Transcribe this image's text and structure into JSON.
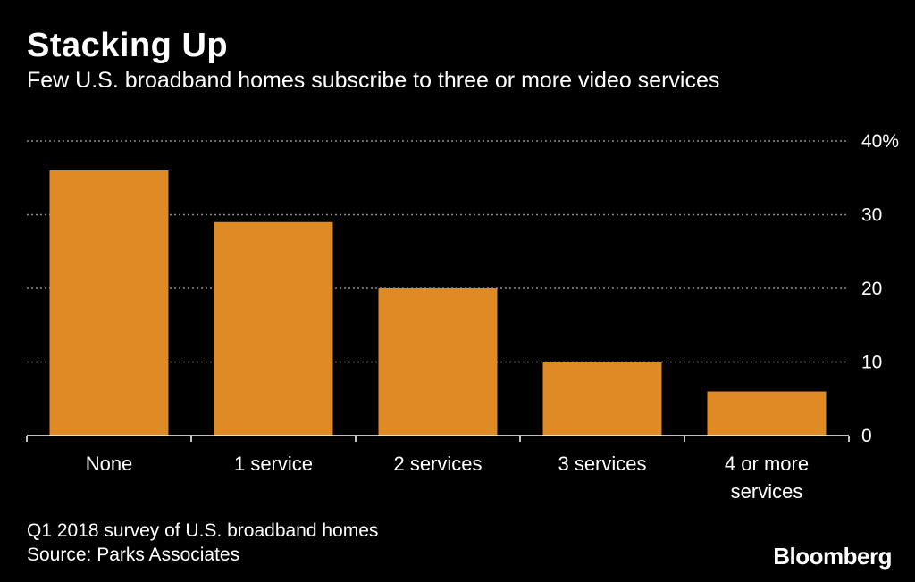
{
  "header": {
    "title": "Stacking Up",
    "subtitle": "Few U.S. broadband homes subscribe to three or more video services"
  },
  "footer": {
    "note": "Q1 2018 survey of U.S. broadband homes",
    "source": "Source: Parks Associates",
    "brand": "Bloomberg"
  },
  "colors": {
    "background": "#000000",
    "bar": "#e08a26",
    "grid": "#8c8c8c",
    "text": "#ffffff"
  },
  "chart_data": {
    "type": "bar",
    "title": "Stacking Up",
    "subtitle": "Few U.S. broadband homes subscribe to three or more video services",
    "categories": [
      "None",
      "1 service",
      "2 services",
      "3 services",
      "4 or more services"
    ],
    "category_lines": [
      [
        "None"
      ],
      [
        "1 service"
      ],
      [
        "2 services"
      ],
      [
        "3 services"
      ],
      [
        "4 or more",
        "services"
      ]
    ],
    "values": [
      36,
      29,
      20,
      10,
      6
    ],
    "unit": "%",
    "ylim": [
      0,
      40
    ],
    "yticks": [
      0,
      10,
      20,
      30,
      40
    ],
    "ytick_labels": [
      "0",
      "10",
      "20",
      "30",
      "40%"
    ],
    "yaxis_position": "right",
    "grid": true,
    "legend": "none"
  }
}
